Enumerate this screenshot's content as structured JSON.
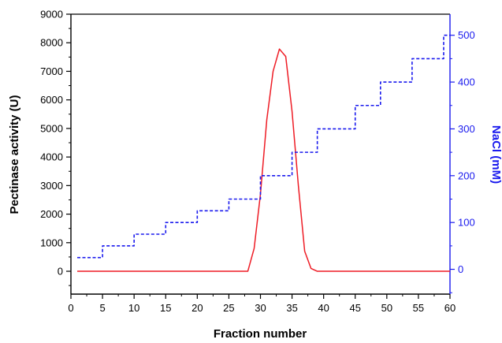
{
  "chart_data": {
    "type": "line",
    "xlabel": "Fraction number",
    "ylabel_left": "Pectinase activity (U)",
    "ylabel_right": "NaCl (mM)",
    "x_ticks": [
      0,
      5,
      10,
      15,
      20,
      25,
      30,
      35,
      40,
      45,
      50,
      55,
      60
    ],
    "y_left_ticks": [
      0,
      1000,
      2000,
      3000,
      4000,
      5000,
      6000,
      7000,
      8000,
      9000
    ],
    "y_right_ticks": [
      0,
      100,
      200,
      300,
      400,
      500
    ],
    "xlim": [
      0,
      60
    ],
    "ylim_left": [
      -800,
      9000
    ],
    "ylim_right": [
      -53,
      545
    ],
    "series": [
      {
        "axis": "left",
        "color": "#ee1c25",
        "style": "solid",
        "points": [
          [
            1,
            0
          ],
          [
            28,
            0
          ],
          [
            29,
            800
          ],
          [
            30,
            2700
          ],
          [
            31,
            5300
          ],
          [
            32,
            7000
          ],
          [
            33,
            7780
          ],
          [
            34,
            7520
          ],
          [
            35,
            5600
          ],
          [
            36,
            3000
          ],
          [
            37,
            700
          ],
          [
            38,
            100
          ],
          [
            39,
            0
          ],
          [
            60,
            0
          ]
        ]
      },
      {
        "axis": "right",
        "color": "#1a1aee",
        "style": "dashed",
        "points": [
          [
            1,
            25
          ],
          [
            5,
            25
          ],
          [
            5,
            50
          ],
          [
            10,
            50
          ],
          [
            10,
            75
          ],
          [
            15,
            75
          ],
          [
            15,
            100
          ],
          [
            20,
            100
          ],
          [
            20,
            125
          ],
          [
            25,
            125
          ],
          [
            25,
            150
          ],
          [
            30,
            150
          ],
          [
            30,
            200
          ],
          [
            35,
            200
          ],
          [
            35,
            250
          ],
          [
            39,
            250
          ],
          [
            39,
            300
          ],
          [
            45,
            300
          ],
          [
            45,
            350
          ],
          [
            49,
            350
          ],
          [
            49,
            400
          ],
          [
            54,
            400
          ],
          [
            54,
            450
          ],
          [
            59,
            450
          ],
          [
            59,
            500
          ],
          [
            60,
            500
          ]
        ]
      }
    ],
    "colors": {
      "left_axis": "#000000",
      "right_axis": "#1a1aee"
    },
    "grid": false
  }
}
